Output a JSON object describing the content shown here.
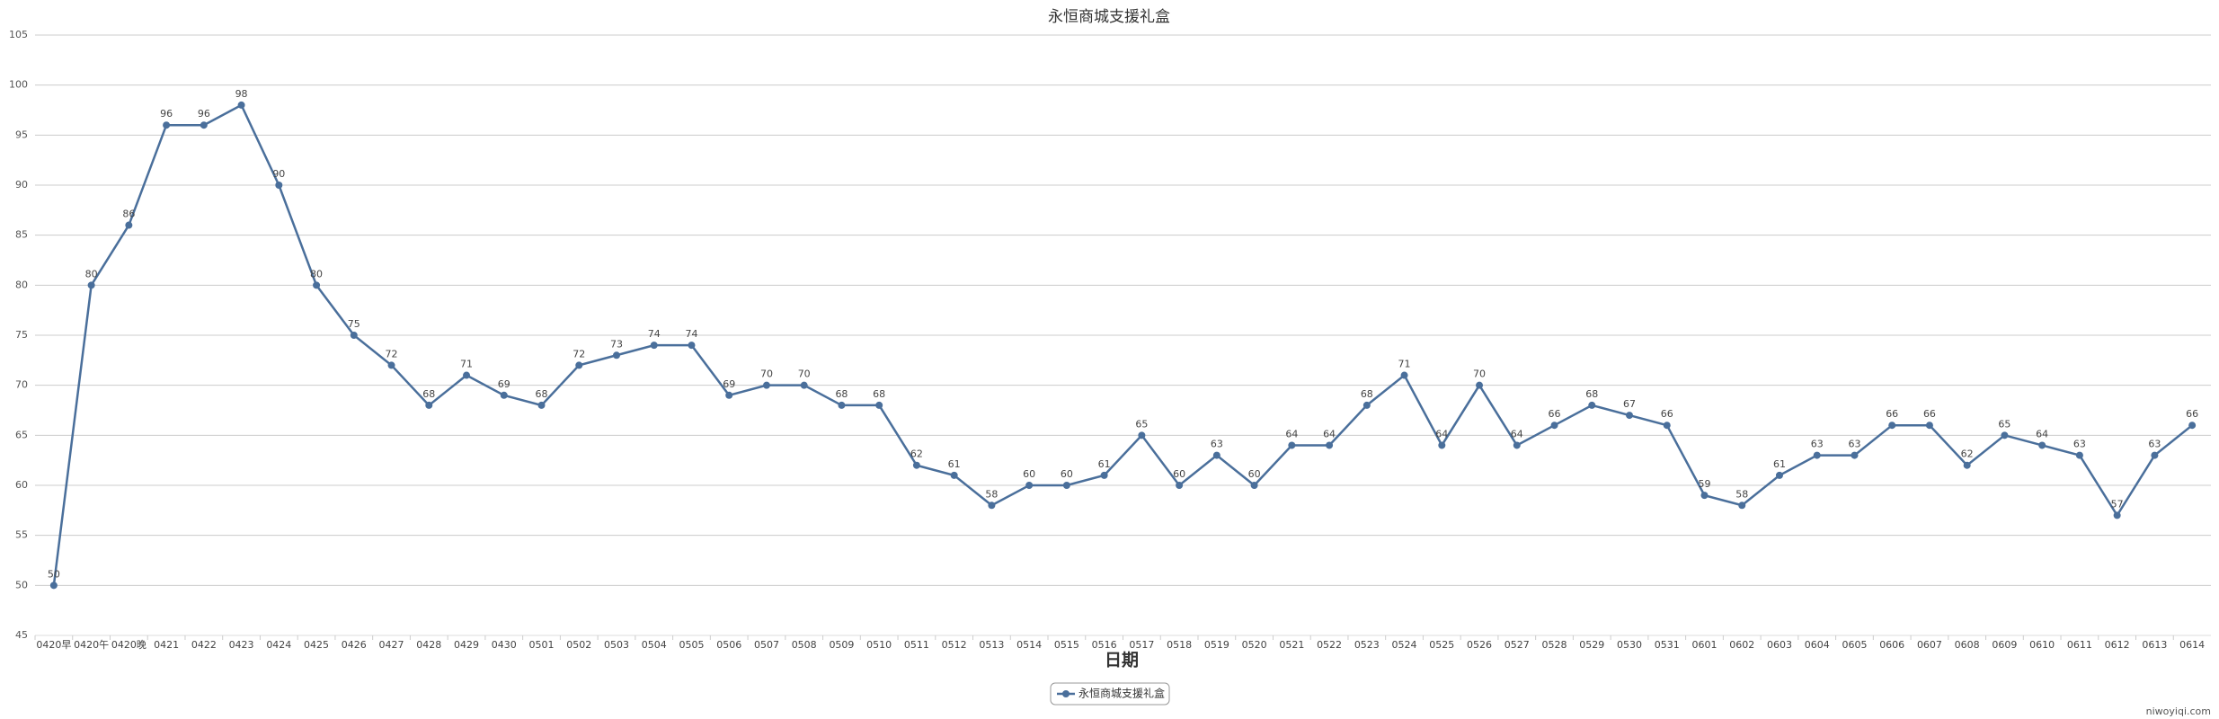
{
  "chart_data": {
    "type": "line",
    "title": "永恒商城支援礼盒",
    "x_label": "日期",
    "watermark": "niwoyiqi.com",
    "categories": [
      "0420早",
      "0420午",
      "0420晚",
      "0421",
      "0422",
      "0423",
      "0424",
      "0425",
      "0426",
      "0427",
      "0428",
      "0429",
      "0430",
      "0501",
      "0502",
      "0503",
      "0504",
      "0505",
      "0506",
      "0507",
      "0508",
      "0509",
      "0510",
      "0511",
      "0512",
      "0513",
      "0514",
      "0515",
      "0516",
      "0517",
      "0518",
      "0519",
      "0520",
      "0521",
      "0522",
      "0523",
      "0524",
      "0525",
      "0526",
      "0527",
      "0528",
      "0529",
      "0530",
      "0531",
      "0601",
      "0602",
      "0603",
      "0604",
      "0605",
      "0606",
      "0607",
      "0608",
      "0609",
      "0610",
      "0611",
      "0612",
      "0613",
      "0614"
    ],
    "series": [
      {
        "name": "永恒商城支援礼盒",
        "color": "#4a6f9b",
        "values": [
          50,
          80,
          86,
          96,
          96,
          98,
          90,
          80,
          75,
          72,
          68,
          71,
          69,
          68,
          72,
          73,
          74,
          74,
          69,
          70,
          70,
          68,
          68,
          62,
          61,
          58,
          60,
          60,
          61,
          65,
          60,
          63,
          60,
          64,
          64,
          68,
          71,
          64,
          70,
          64,
          66,
          68,
          67,
          66,
          59,
          58,
          61,
          63,
          63,
          66,
          66,
          62,
          65,
          64,
          63,
          57,
          63,
          66
        ]
      }
    ],
    "ylim": [
      45,
      105
    ],
    "yticks": [
      45,
      50,
      55,
      60,
      65,
      70,
      75,
      80,
      85,
      90,
      95,
      100,
      105
    ],
    "grid": true,
    "legend": "bottom"
  }
}
